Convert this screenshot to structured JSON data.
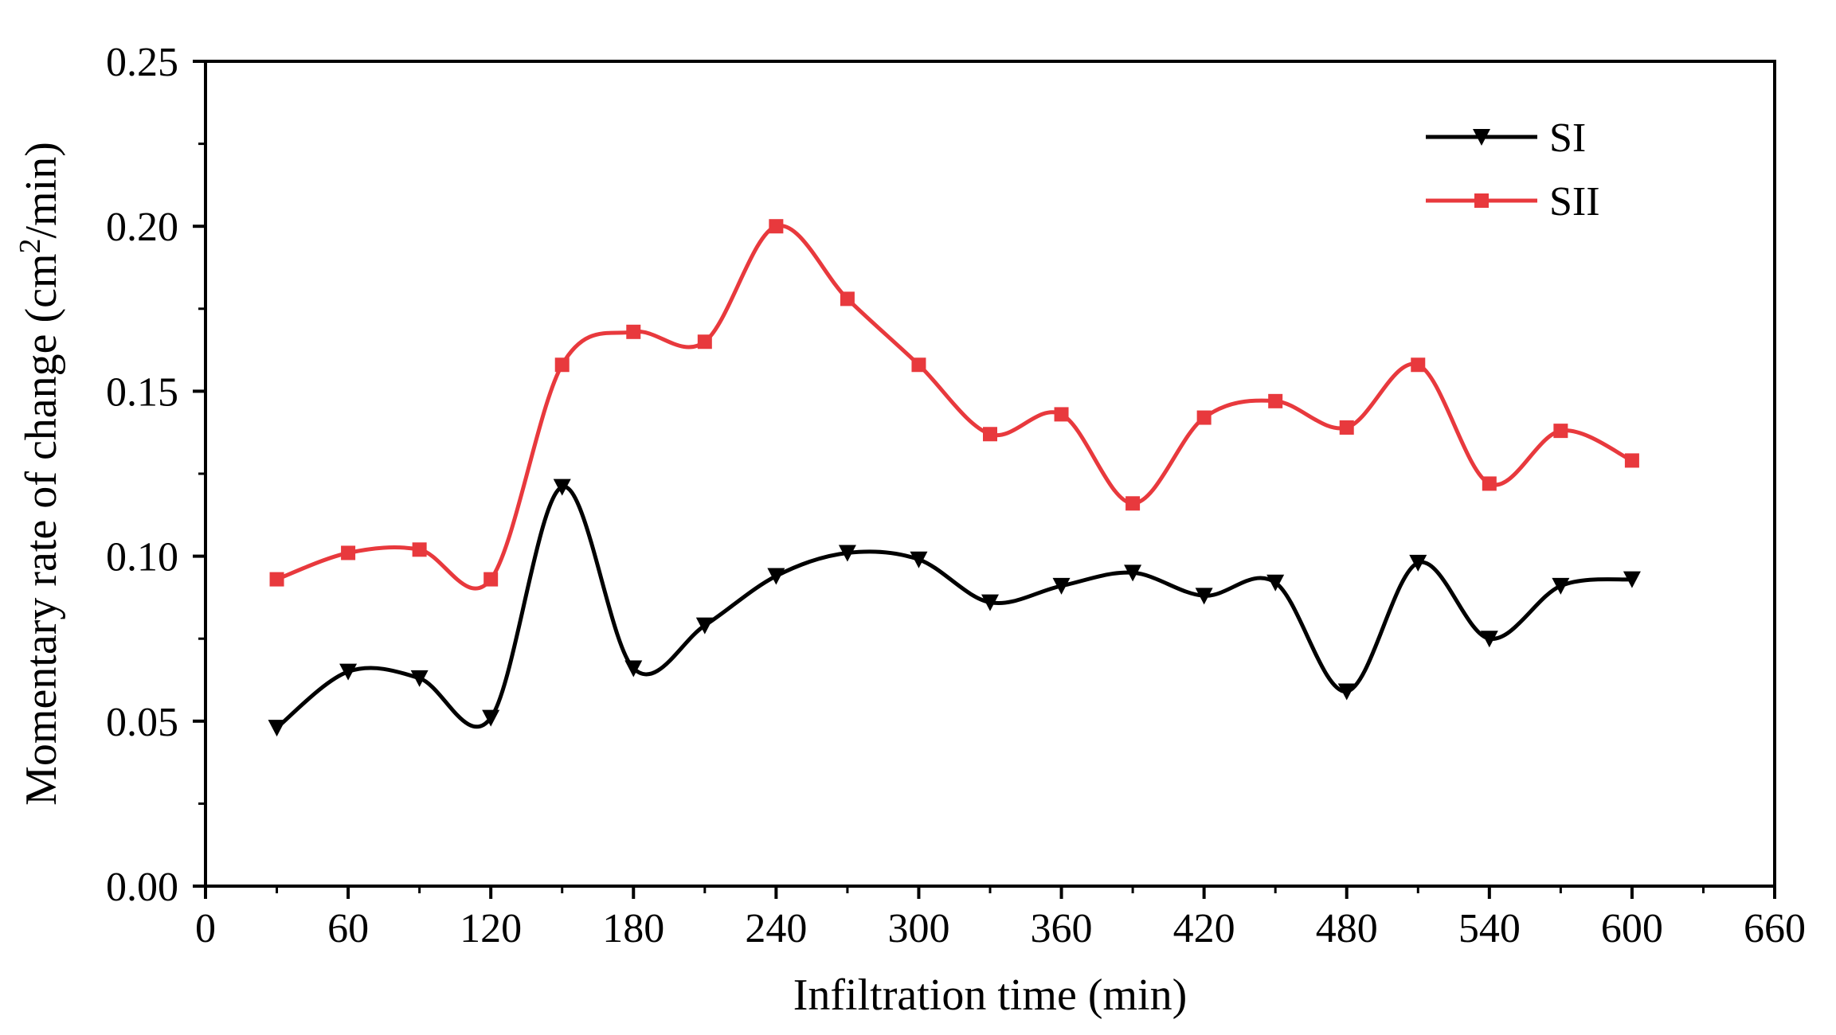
{
  "chart_data": {
    "type": "line",
    "title": "",
    "xlabel": "Infiltration time (min)",
    "ylabel": {
      "main": "Momentary rate of change (cm",
      "superscript": "2",
      "suffix": "/min)"
    },
    "xlim": [
      0,
      660
    ],
    "ylim": [
      0,
      0.25
    ],
    "x_ticks": [
      0,
      60,
      120,
      180,
      240,
      300,
      360,
      420,
      480,
      540,
      600,
      660
    ],
    "x_tick_labels": [
      "0",
      "60",
      "120",
      "180",
      "240",
      "300",
      "360",
      "420",
      "480",
      "540",
      "600",
      "660"
    ],
    "y_ticks": [
      0,
      0.05,
      0.1,
      0.15,
      0.2,
      0.25
    ],
    "y_tick_labels": [
      "0.00",
      "0.05",
      "0.10",
      "0.15",
      "0.20",
      "0.25"
    ],
    "grid": false,
    "legend_position": "top-right",
    "smooth": true,
    "x": [
      30,
      60,
      90,
      120,
      150,
      180,
      210,
      240,
      270,
      300,
      330,
      360,
      390,
      420,
      450,
      480,
      510,
      540,
      570,
      600
    ],
    "series": [
      {
        "name": "SI",
        "color": "#000000",
        "marker": "triangle-down",
        "values": [
          0.048,
          0.065,
          0.063,
          0.051,
          0.121,
          0.066,
          0.079,
          0.094,
          0.101,
          0.099,
          0.086,
          0.091,
          0.095,
          0.088,
          0.092,
          0.059,
          0.098,
          0.075,
          0.091,
          0.093
        ]
      },
      {
        "name": "SII",
        "color": "#e8393d",
        "marker": "square",
        "values": [
          0.093,
          0.101,
          0.102,
          0.093,
          0.158,
          0.168,
          0.165,
          0.2,
          0.178,
          0.158,
          0.137,
          0.143,
          0.116,
          0.142,
          0.147,
          0.139,
          0.158,
          0.122,
          0.138,
          0.129
        ]
      }
    ]
  }
}
